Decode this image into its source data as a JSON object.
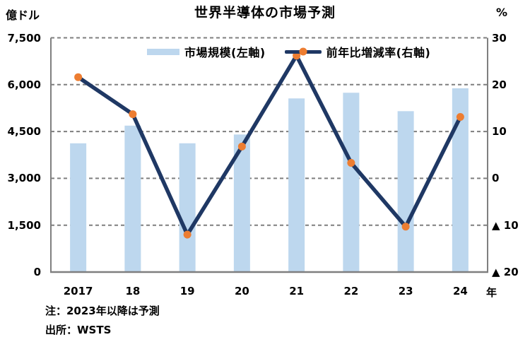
{
  "title": "世界半導体の市場予測",
  "left_axis": {
    "unit": "億ドル",
    "tick_labels": [
      "7,500",
      "6,000",
      "4,500",
      "3,000",
      "1,500",
      "0"
    ],
    "tick_values": [
      7500,
      6000,
      4500,
      3000,
      1500,
      0
    ]
  },
  "right_axis": {
    "unit": "%",
    "tick_labels": [
      "30",
      "20",
      "10",
      "0",
      "▲ 10",
      "▲ 20"
    ],
    "tick_values": [
      30,
      20,
      10,
      0,
      -10,
      -20
    ]
  },
  "x_axis": {
    "unit": "年",
    "labels": [
      "2017",
      "18",
      "19",
      "20",
      "21",
      "22",
      "23",
      "24"
    ]
  },
  "legend": {
    "bar_label": "市場規模(左軸)",
    "line_label": "前年比増減率(右軸)"
  },
  "notes": {
    "line1": "注：2023年以降は予測",
    "line2": "出所：WSTS"
  },
  "colors": {
    "bar": "#BDD7EE",
    "line": "#1F3864",
    "marker": "#ED7D31",
    "grid": "#7F7F7F",
    "frame": "#7F7F7F",
    "text": "#000000"
  },
  "chart_data": {
    "type": "bar+line combo",
    "title": "世界半導体の市場予測",
    "categories": [
      "2017",
      "18",
      "19",
      "20",
      "21",
      "22",
      "23",
      "24"
    ],
    "series": [
      {
        "name": "市場規模(左軸)",
        "type": "bar",
        "axis": "left",
        "unit": "億ドル",
        "values": [
          4122,
          4688,
          4123,
          4404,
          5559,
          5741,
          5151,
          5884
        ]
      },
      {
        "name": "前年比増減率(右軸)",
        "type": "line",
        "axis": "right",
        "unit": "%",
        "values": [
          21.6,
          13.7,
          -12.0,
          6.8,
          26.2,
          3.3,
          -10.3,
          13.1
        ]
      }
    ],
    "left_ylim": [
      0,
      7500
    ],
    "right_ylim": [
      -20,
      30
    ],
    "grid": "horizontal dashed",
    "legend_position": "top inside plot",
    "xlabel": "年",
    "note": "2023年以降は予測",
    "source": "WSTS"
  }
}
